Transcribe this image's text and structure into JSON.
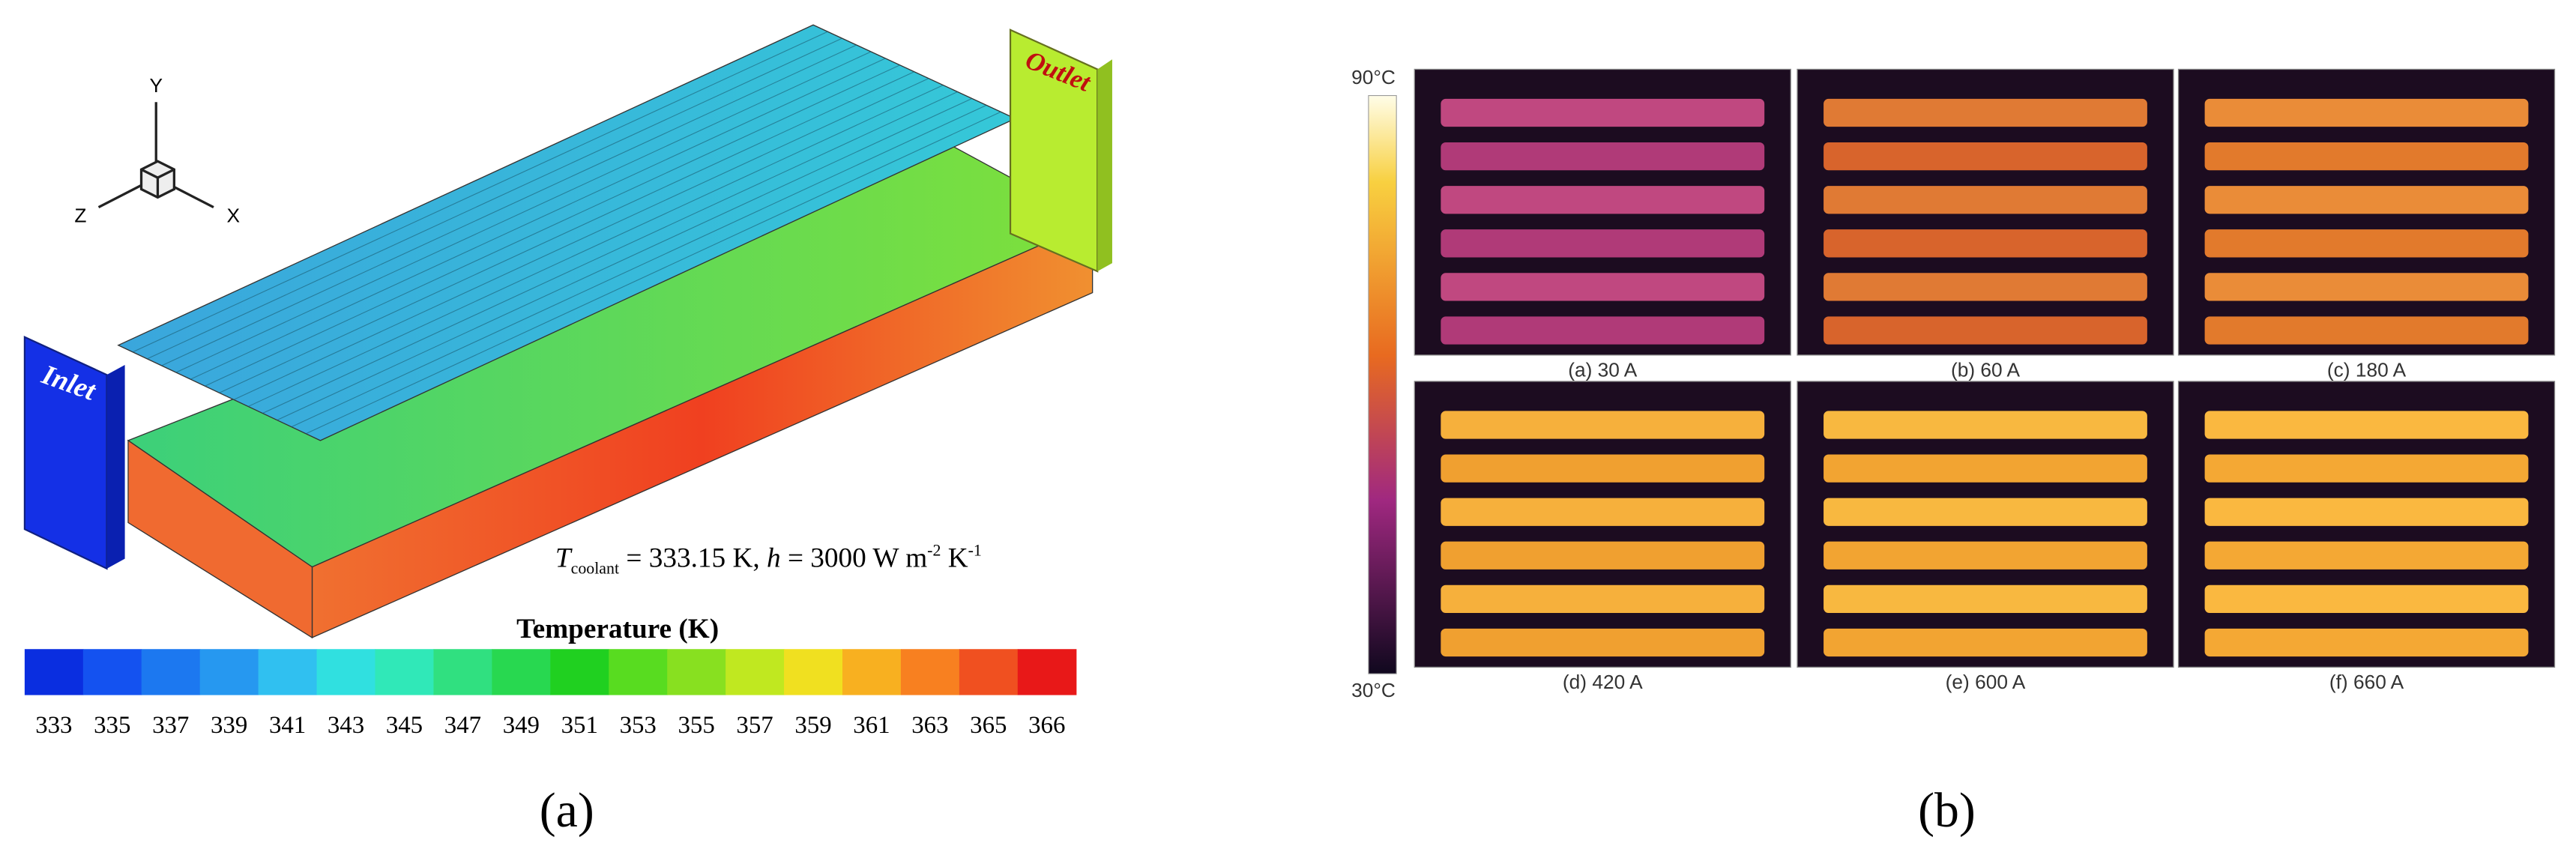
{
  "panel_a": {
    "axes": {
      "y": "Y",
      "z": "Z",
      "x": "X"
    },
    "inlet": "Inlet",
    "outlet": "Outlet",
    "condition": [
      "T",
      "coolant",
      " = 333.15 K,  ",
      "h",
      " = 3000 W m",
      "-2",
      "  K",
      "-1"
    ],
    "colorbar": {
      "title": "Temperature (K)",
      "labels": [
        "333",
        "335",
        "337",
        "339",
        "341",
        "343",
        "345",
        "347",
        "349",
        "351",
        "353",
        "355",
        "357",
        "359",
        "361",
        "363",
        "365",
        "366"
      ]
    },
    "caption": "(a)"
  },
  "panel_b": {
    "colorbar": {
      "max": "90°C",
      "min": "30°C"
    },
    "images": [
      "(a) 30 A",
      "(b) 60 A",
      "(c) 180 A",
      "(d) 420 A",
      "(e) 600 A",
      "(f) 660 A"
    ],
    "caption": "(b)"
  }
}
